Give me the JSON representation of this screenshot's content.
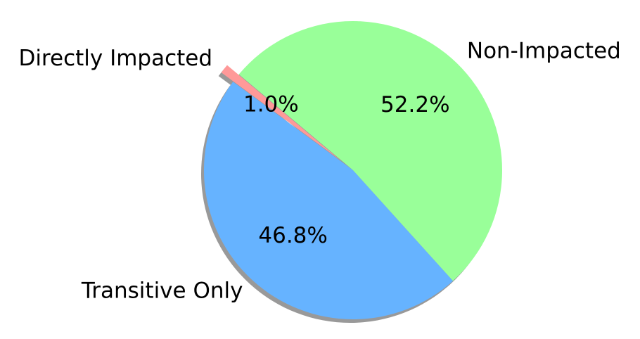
{
  "chart_data": {
    "type": "pie",
    "categories": [
      "Directly Impacted",
      "Transitive Only",
      "Non-Impacted"
    ],
    "values": [
      1.0,
      46.8,
      52.2
    ],
    "value_labels": [
      "1.0%",
      "46.8%",
      "52.2%"
    ],
    "colors": [
      "#ff9999",
      "#66b3ff",
      "#99ff99"
    ],
    "shadow": true
  }
}
